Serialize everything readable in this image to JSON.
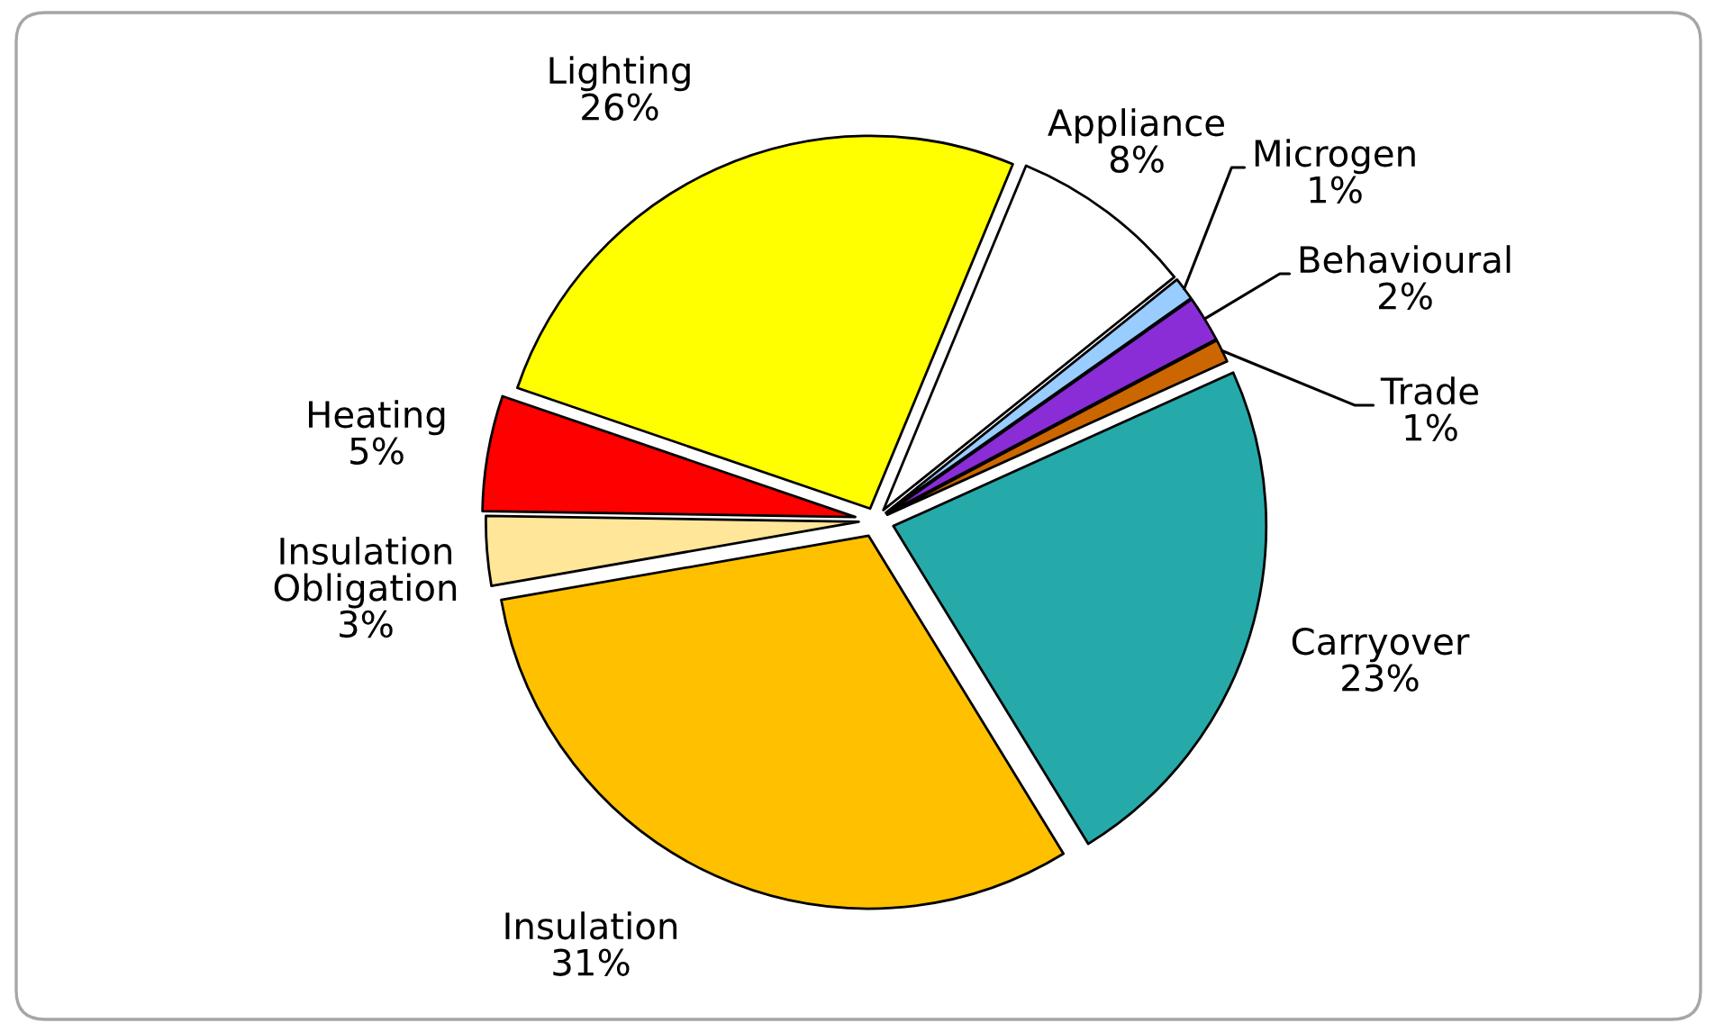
{
  "chart_data": {
    "type": "pie",
    "categories": [
      "Appliance",
      "Microgen",
      "Behavioural",
      "Trade",
      "Carryover",
      "Insulation",
      "Insulation Obligation",
      "Heating",
      "Lighting"
    ],
    "values": [
      8,
      1,
      2,
      1,
      23,
      31,
      3,
      5,
      26
    ],
    "value_labels": [
      "8%",
      "1%",
      "2%",
      "1%",
      "23%",
      "31%",
      "3%",
      "5%",
      "26%"
    ],
    "colors": [
      "#ffffff",
      "#99ccff",
      "#8a2dd6",
      "#cc6600",
      "#26a9a9",
      "#ffc000",
      "#ffe699",
      "#ff0000",
      "#ffff00"
    ]
  }
}
